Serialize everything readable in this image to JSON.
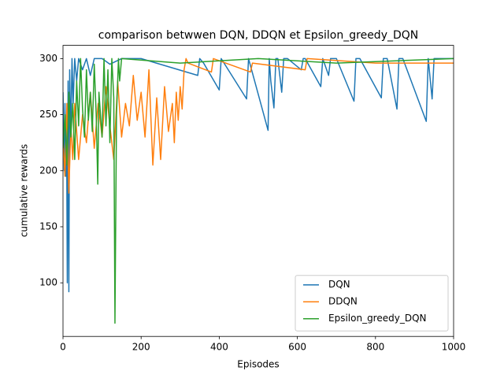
{
  "chart_data": {
    "type": "line",
    "title": "comparison betwwen DQN, DDQN et Epsilon_greedy_DQN",
    "x_label": "Episodes",
    "y_label": "cumulative rewards",
    "xlim": [
      0,
      1000
    ],
    "xticks": [
      0,
      200,
      400,
      600,
      800,
      1000
    ],
    "ylim": [
      52.2,
      311.8
    ],
    "yticks": [
      100,
      150,
      200,
      250,
      300
    ],
    "grid": false,
    "legend": "lower right",
    "series": [
      {
        "name": "DQN",
        "color": "#1f77b4",
        "x": [
          0,
          3,
          5,
          7,
          9,
          11,
          13,
          15,
          17,
          20,
          23,
          26,
          30,
          35,
          40,
          50,
          60,
          70,
          80,
          100,
          120,
          150,
          200,
          345,
          350,
          360,
          400,
          405,
          470,
          475,
          525,
          528,
          532,
          540,
          545,
          550,
          560,
          565,
          575,
          610,
          615,
          620,
          660,
          665,
          680,
          685,
          700,
          745,
          750,
          760,
          815,
          820,
          830,
          855,
          860,
          870,
          930,
          935,
          945,
          950,
          960,
          1000
        ],
        "values": [
          270,
          200,
          260,
          195,
          250,
          100,
          280,
          92,
          290,
          230,
          300,
          260,
          300,
          280,
          300,
          290,
          300,
          285,
          300,
          300,
          295,
          300,
          300,
          285,
          300,
          296,
          272,
          300,
          264,
          300,
          236,
          300,
          280,
          256,
          300,
          300,
          270,
          300,
          300,
          290,
          300,
          300,
          275,
          300,
          285,
          300,
          300,
          262,
          300,
          300,
          265,
          300,
          300,
          255,
          300,
          300,
          244,
          300,
          264,
          300,
          300,
          300
        ]
      },
      {
        "name": "DDQN",
        "color": "#ff7f0e",
        "x": [
          0,
          5,
          10,
          15,
          20,
          25,
          30,
          40,
          50,
          60,
          70,
          80,
          90,
          100,
          110,
          120,
          130,
          140,
          150,
          160,
          170,
          180,
          190,
          200,
          210,
          220,
          230,
          240,
          250,
          260,
          270,
          280,
          285,
          290,
          295,
          300,
          305,
          310,
          315,
          320,
          380,
          385,
          480,
          485,
          620,
          625,
          800,
          1000
        ],
        "values": [
          230,
          195,
          260,
          180,
          240,
          210,
          260,
          210,
          250,
          225,
          270,
          220,
          260,
          230,
          275,
          240,
          210,
          280,
          230,
          260,
          240,
          285,
          245,
          270,
          230,
          290,
          205,
          265,
          210,
          275,
          235,
          260,
          225,
          270,
          245,
          275,
          255,
          290,
          300,
          296,
          288,
          300,
          288,
          296,
          290,
          300,
          296,
          296
        ]
      },
      {
        "name": "Epsilon_greedy_DQN",
        "color": "#2ca02c",
        "x": [
          0,
          5,
          10,
          15,
          20,
          25,
          30,
          35,
          40,
          45,
          50,
          55,
          60,
          65,
          70,
          75,
          80,
          85,
          89,
          92,
          100,
          105,
          110,
          115,
          120,
          125,
          130,
          133,
          137,
          142,
          145,
          150,
          300,
          500,
          700,
          1000
        ],
        "values": [
          220,
          250,
          205,
          270,
          230,
          260,
          210,
          280,
          240,
          300,
          255,
          230,
          290,
          245,
          270,
          235,
          295,
          250,
          188,
          270,
          230,
          300,
          240,
          290,
          225,
          300,
          265,
          64,
          250,
          300,
          280,
          300,
          296,
          300,
          296,
          300
        ]
      }
    ]
  }
}
